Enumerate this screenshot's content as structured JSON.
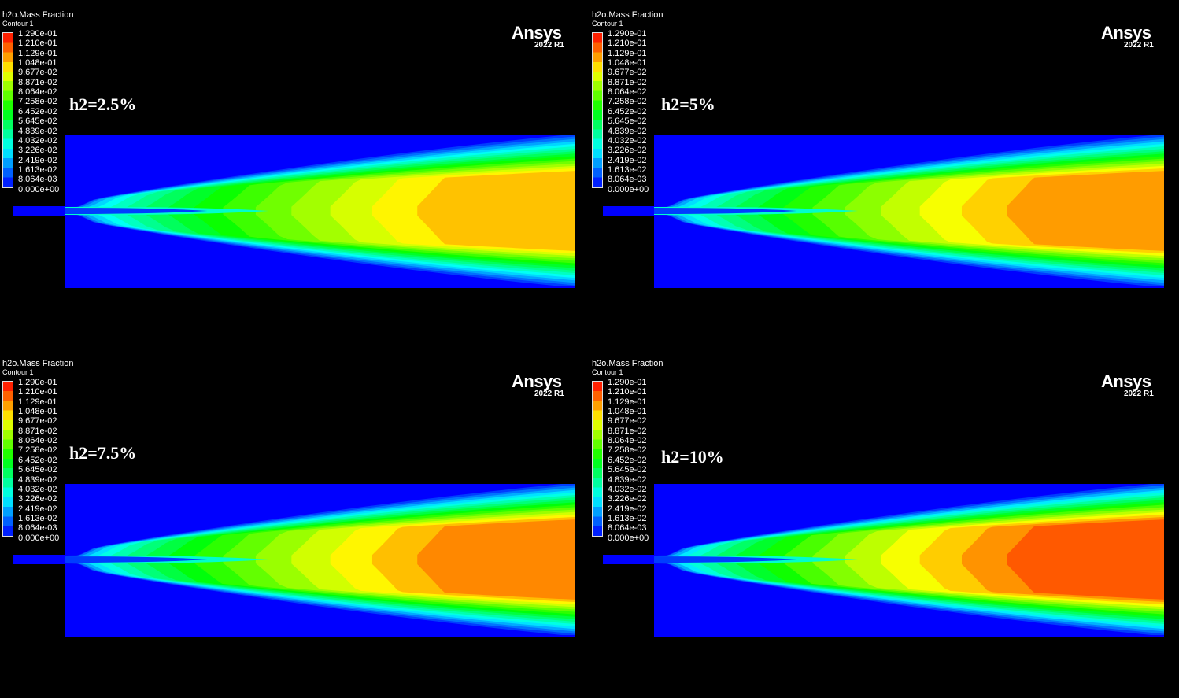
{
  "legend": {
    "variable": "h2o.Mass Fraction",
    "contour_name": "Contour 1",
    "levels": [
      "1.290e-01",
      "1.210e-01",
      "1.129e-01",
      "1.048e-01",
      "9.677e-02",
      "8.871e-02",
      "8.064e-02",
      "7.258e-02",
      "6.452e-02",
      "5.645e-02",
      "4.839e-02",
      "4.032e-02",
      "3.226e-02",
      "2.419e-02",
      "1.613e-02",
      "8.064e-03",
      "0.000e+00"
    ]
  },
  "brand": {
    "logo": "Ansys",
    "version": "2022 R1"
  },
  "colors": {
    "background": "#000000",
    "low": "#0000ff",
    "high": "#ff0000",
    "text": "#ffffff"
  },
  "panels": [
    {
      "label": "h2=2.5%",
      "peak": 0.86
    },
    {
      "label": "h2=5%",
      "peak": 0.9
    },
    {
      "label": "h2=7.5%",
      "peak": 0.92
    },
    {
      "label": "h2=10%",
      "peak": 0.97
    }
  ]
}
